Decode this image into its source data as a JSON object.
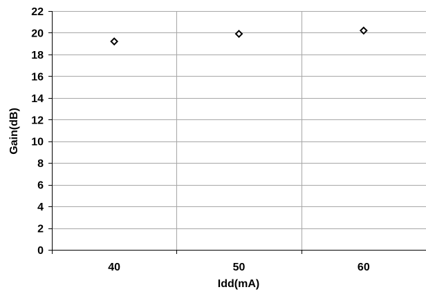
{
  "chart_data": {
    "type": "scatter",
    "title": "",
    "xlabel": "Idd(mA)",
    "ylabel": "Gain(dB)",
    "categories": [
      "40",
      "50",
      "60"
    ],
    "x": [
      40,
      50,
      60
    ],
    "values": [
      19.2,
      19.9,
      20.2
    ],
    "ylim": [
      0,
      22
    ],
    "yticks": [
      0,
      2,
      4,
      6,
      8,
      10,
      12,
      14,
      16,
      18,
      20,
      22
    ],
    "grid": true,
    "legend": "none",
    "marker": "diamond",
    "colors": {
      "marker_stroke": "#000000",
      "gridline": "#a6a6a6",
      "axis": "#000000"
    }
  }
}
